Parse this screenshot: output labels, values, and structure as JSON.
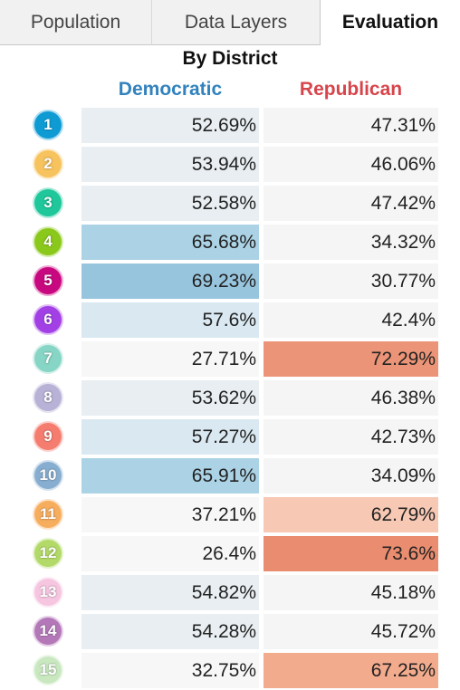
{
  "tabs": [
    {
      "label": "Population",
      "active": false
    },
    {
      "label": "Data Layers",
      "active": false
    },
    {
      "label": "Evaluation",
      "active": true
    }
  ],
  "section_title": "By District",
  "columns": {
    "democratic": "Democratic",
    "republican": "Republican"
  },
  "colors": {
    "democratic_header": "#3182bd",
    "republican_header": "#d6454b"
  },
  "districts": [
    {
      "number": "1",
      "badge_color": "#0e9bd3",
      "dem": "52.69%",
      "rep": "47.31%",
      "dem_fill": "#e8eef2",
      "rep_fill": "#f5f5f5"
    },
    {
      "number": "2",
      "badge_color": "#f7c35e",
      "dem": "53.94%",
      "rep": "46.06%",
      "dem_fill": "#e8eef2",
      "rep_fill": "#f5f5f5"
    },
    {
      "number": "3",
      "badge_color": "#1fc79b",
      "dem": "52.58%",
      "rep": "47.42%",
      "dem_fill": "#e8eef2",
      "rep_fill": "#f5f5f5"
    },
    {
      "number": "4",
      "badge_color": "#8bc81c",
      "dem": "65.68%",
      "rep": "34.32%",
      "dem_fill": "#abd3e5",
      "rep_fill": "#f5f5f5"
    },
    {
      "number": "5",
      "badge_color": "#c8087f",
      "dem": "69.23%",
      "rep": "30.77%",
      "dem_fill": "#98c5de",
      "rep_fill": "#f5f5f5"
    },
    {
      "number": "6",
      "badge_color": "#a240e6",
      "dem": "57.6%",
      "rep": "42.4%",
      "dem_fill": "#d9e8f1",
      "rep_fill": "#f5f5f5"
    },
    {
      "number": "7",
      "badge_color": "#86d5c5",
      "dem": "27.71%",
      "rep": "72.29%",
      "dem_fill": "#f7f7f7",
      "rep_fill": "#ec9477"
    },
    {
      "number": "8",
      "badge_color": "#b8b2d6",
      "dem": "53.62%",
      "rep": "46.38%",
      "dem_fill": "#e8eef2",
      "rep_fill": "#f5f5f5"
    },
    {
      "number": "9",
      "badge_color": "#f57d70",
      "dem": "57.27%",
      "rep": "42.73%",
      "dem_fill": "#d9e8f1",
      "rep_fill": "#f5f5f5"
    },
    {
      "number": "10",
      "badge_color": "#87aed0",
      "dem": "65.91%",
      "rep": "34.09%",
      "dem_fill": "#abd3e5",
      "rep_fill": "#f5f5f5"
    },
    {
      "number": "11",
      "badge_color": "#f7ad5e",
      "dem": "37.21%",
      "rep": "62.79%",
      "dem_fill": "#f7f7f7",
      "rep_fill": "#f7c8b3"
    },
    {
      "number": "12",
      "badge_color": "#b3da68",
      "dem": "26.4%",
      "rep": "73.6%",
      "dem_fill": "#f7f7f7",
      "rep_fill": "#ea8c6f"
    },
    {
      "number": "13",
      "badge_color": "#f6c6e0",
      "dem": "54.82%",
      "rep": "45.18%",
      "dem_fill": "#e8eef2",
      "rep_fill": "#f5f5f5"
    },
    {
      "number": "14",
      "badge_color": "#b478b9",
      "dem": "54.28%",
      "rep": "45.72%",
      "dem_fill": "#e8eef2",
      "rep_fill": "#f5f5f5"
    },
    {
      "number": "15",
      "badge_color": "#c9e8c0",
      "dem": "32.75%",
      "rep": "67.25%",
      "dem_fill": "#f7f7f7",
      "rep_fill": "#f3ab8d"
    }
  ]
}
